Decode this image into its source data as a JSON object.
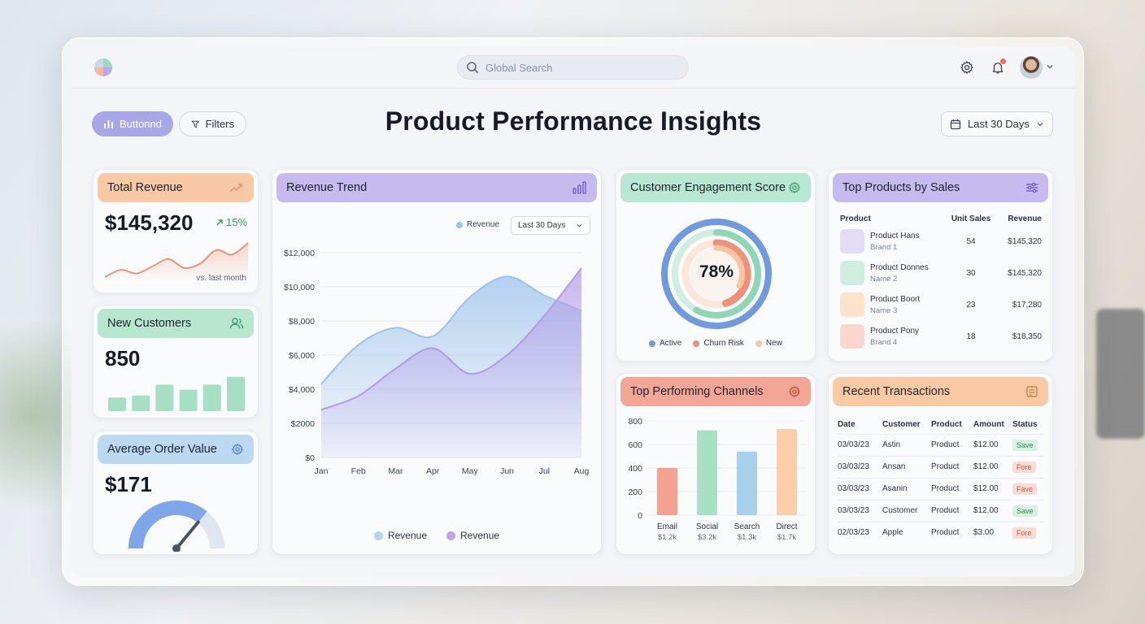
{
  "search": {
    "placeholder": "Global Search"
  },
  "toolbar": {
    "primary_label": "Buttonnd",
    "filters_label": "Filters",
    "date_range": "Last 30 Days"
  },
  "page": {
    "title": "Product Performance Insights"
  },
  "total_revenue": {
    "title": "Total Revenue",
    "value": "$145,320",
    "change": "15%",
    "note": "vs. last month",
    "icon": "trend-up-icon",
    "sparkline": [
      10,
      18,
      14,
      22,
      30,
      20,
      25,
      40,
      35,
      48
    ],
    "accent": "#e8957a"
  },
  "new_customers": {
    "title": "New Customers",
    "value": "850",
    "icon": "users-icon",
    "bars": [
      0.35,
      0.4,
      0.68,
      0.55,
      0.68,
      0.88
    ],
    "accent": "#a6dfc3"
  },
  "avg_order": {
    "title": "Average Order Value",
    "value": "$171",
    "icon": "gear-icon",
    "gauge": 0.72,
    "accent": "#7fa6e8"
  },
  "revenue_trend": {
    "title": "Revenue Trend",
    "legend_top": "Revenue",
    "range": "Last 30 Days",
    "legend_bottom": [
      "Revenue",
      "Revenue"
    ]
  },
  "engagement": {
    "title": "Customer Engagement Score",
    "value": "78%",
    "legend": [
      "Active",
      "Churn Risk",
      "New"
    ],
    "colors": [
      "#6f9ae0",
      "#f0907a",
      "#f7c59f"
    ]
  },
  "channels": {
    "title": "Top Performing Channels",
    "sub": [
      "$1.2k",
      "$3.2k",
      "$1.3k",
      "$1.7k"
    ]
  },
  "top_products": {
    "title": "Top Products by Sales",
    "headers": [
      "Product",
      "Unit Sales",
      "Revenue"
    ],
    "rows": [
      {
        "name": "Product Hans",
        "sub": "Brand 1",
        "units": "54",
        "revenue": "$145,320",
        "color": "#e4dcf6"
      },
      {
        "name": "Product Donnes",
        "sub": "Name 2",
        "units": "30",
        "revenue": "$145,320",
        "color": "#cfeede"
      },
      {
        "name": "Product Boort",
        "sub": "Name 3",
        "units": "23",
        "revenue": "$17,280",
        "color": "#fde2cc"
      },
      {
        "name": "Product Pony",
        "sub": "Brand 4",
        "units": "18",
        "revenue": "$18,350",
        "color": "#fbd6cf"
      }
    ]
  },
  "transactions": {
    "title": "Recent Transactions",
    "headers": [
      "Date",
      "Customer",
      "Product",
      "Amount",
      "Status"
    ],
    "rows": [
      {
        "date": "03/03/23",
        "customer": "Astin",
        "product": "Product",
        "amount": "$12.00",
        "status": "Save",
        "tone": "green"
      },
      {
        "date": "03/03/23",
        "customer": "Ansan",
        "product": "Product",
        "amount": "$12.00",
        "status": "Fore",
        "tone": "red"
      },
      {
        "date": "03/03/23",
        "customer": "Asanin",
        "product": "Product",
        "amount": "$12.00",
        "status": "Fave",
        "tone": "red"
      },
      {
        "date": "03/03/23",
        "customer": "Customer",
        "product": "Product",
        "amount": "$12.00",
        "status": "Save",
        "tone": "green"
      },
      {
        "date": "02/03/23",
        "customer": "Apple",
        "product": "Product",
        "amount": "$3.00",
        "status": "Fore",
        "tone": "red"
      }
    ]
  },
  "chart_data": [
    {
      "type": "area",
      "title": "Revenue Trend",
      "categories": [
        "Jan",
        "Feb",
        "Mar",
        "Apr",
        "May",
        "Jun",
        "Jul",
        "Aug"
      ],
      "ylim": [
        0,
        12000
      ],
      "yticks": [
        "$0",
        "$2000",
        "$4,000",
        "$6,000",
        "$8,000",
        "$10,000",
        "$12,000"
      ],
      "series": [
        {
          "name": "Revenue",
          "values": [
            4300,
            6600,
            7600,
            7100,
            9400,
            10600,
            9500,
            8600
          ],
          "color": "#9ec3ea"
        },
        {
          "name": "Revenue",
          "values": [
            2800,
            3600,
            5200,
            6400,
            4900,
            6000,
            8300,
            11100
          ],
          "color": "#b29be6"
        }
      ]
    },
    {
      "type": "bar",
      "title": "Top Performing Channels",
      "categories": [
        "Email",
        "Social",
        "Search",
        "Direct"
      ],
      "values": [
        400,
        720,
        540,
        730
      ],
      "ylim": [
        0,
        800
      ],
      "yticks": [
        "0",
        "200",
        "400",
        "600",
        "800"
      ],
      "colors": [
        "#f2a290",
        "#a8e0c4",
        "#a9d0ea",
        "#fbcda8"
      ]
    },
    {
      "type": "pie",
      "title": "Customer Engagement Score",
      "categories": [
        "Active",
        "Churn Risk",
        "New"
      ],
      "values": [
        78,
        58,
        45
      ]
    }
  ]
}
